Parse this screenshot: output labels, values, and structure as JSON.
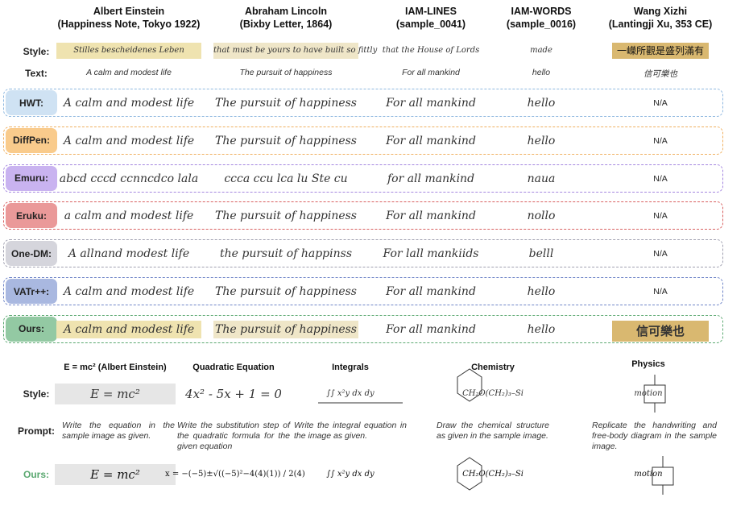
{
  "columns": [
    {
      "name": "Albert Einstein",
      "source": "(Happiness Note, Tokyo 1922)"
    },
    {
      "name": "Abraham Lincoln",
      "source": "(Bixby Letter, 1864)"
    },
    {
      "name": "IAM-LINES",
      "source": "(sample_0041)"
    },
    {
      "name": "IAM-WORDS",
      "source": "(sample_0016)"
    },
    {
      "name": "Wang Xizhi",
      "source": "(Lantingji Xu, 353 CE)"
    }
  ],
  "style_row": {
    "label": "Style:",
    "samples": [
      "Stilles bescheidenes Leben",
      "that must be yours to have built so fittly",
      "that the House of Lords",
      "made",
      "一嶸所觀是盛列滿有"
    ]
  },
  "text_row": {
    "label": "Text:",
    "texts": [
      "A calm and modest life",
      "The pursuit of happiness",
      "For all mankind",
      "hello",
      "信可樂也"
    ]
  },
  "methods": [
    {
      "name": "HWT:",
      "outputs": [
        "A calm and modest life",
        "The pursuit of happiness",
        "For all mankind",
        "hello",
        "N/A"
      ]
    },
    {
      "name": "DiffPen:",
      "outputs": [
        "A calm and modest life",
        "The pursuit of happiness",
        "For all mankind",
        "hello",
        "N/A"
      ]
    },
    {
      "name": "Emuru:",
      "outputs": [
        "abcd cccd ccnncdco lala",
        "ccca ccu lca lu Ste cu",
        "for all mankind",
        "naua",
        "N/A"
      ]
    },
    {
      "name": "Eruku:",
      "outputs": [
        "a calm and modest life",
        "The pursuit of happiness",
        "For all mankind",
        "nollo",
        "N/A"
      ]
    },
    {
      "name": "One-DM:",
      "outputs": [
        "A allnand modest life",
        "the pursuit of happinss",
        "For lall mankiids",
        "belll",
        "N/A"
      ]
    },
    {
      "name": "VATr++:",
      "outputs": [
        "A calm and modest life",
        "The pursuit of happiness",
        "For all mankind",
        "hello",
        "N/A"
      ]
    },
    {
      "name": "Ours:",
      "outputs": [
        "A calm and modest life",
        "The pursuit of happiness",
        "For all mankind",
        "hello",
        "信可樂也"
      ]
    }
  ],
  "formulas": {
    "columns": [
      "E = mc² (Albert Einstein)",
      "Quadratic Equation",
      "Integrals",
      "Chemistry",
      "Physics"
    ],
    "style_label": "Style:",
    "style_samples": [
      "E = mc²",
      "4x² - 5x + 1 = 0",
      "∫∫ x²y dx dy",
      "CH₂O(CH₂)₃–Si",
      "motion"
    ],
    "prompt_label": "Prompt:",
    "prompts": [
      "Write the equation in the sample image as given.",
      "Write the substitution step of the quadratic formula for the given equation",
      "Write the integral equation in the image as given.",
      "Draw the chemical structure as given in the sample image.",
      "Replicate the handwriting and free-body diagram in the sample image."
    ],
    "ours_label": "Ours:",
    "ours_outputs": [
      "E = mc²",
      "x = −(−5)±√((−5)²−4(4)(1)) / 2(4)",
      "∫∫ x²y dx dy",
      "CH₂O(CH₂)₃–Si",
      "motion"
    ]
  }
}
